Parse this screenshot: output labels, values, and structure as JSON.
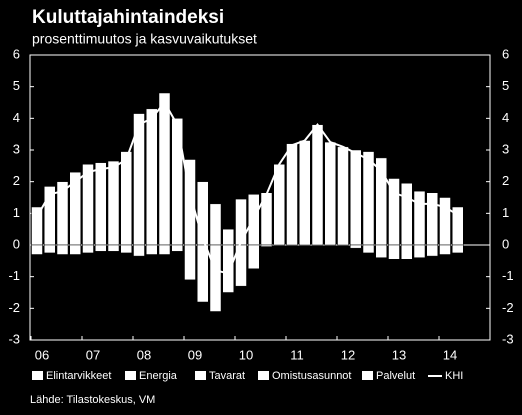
{
  "title": "Kuluttajahintaindeksi",
  "subtitle": "prosenttimuutos ja kasvuvaikutukset",
  "source": "Lähde: Tilastokeskus, VM",
  "chart_data": {
    "type": "bar",
    "categories": [
      "06",
      null,
      null,
      null,
      "07",
      null,
      null,
      null,
      "08",
      null,
      null,
      null,
      "09",
      null,
      null,
      null,
      "10",
      null,
      null,
      null,
      "11",
      null,
      null,
      null,
      "12",
      null,
      null,
      null,
      "13",
      null,
      null,
      null,
      "14",
      null
    ],
    "stacked_bars": {
      "color": "#ffffff",
      "upper": [
        1.2,
        1.85,
        2.0,
        2.3,
        2.55,
        2.6,
        2.65,
        2.95,
        4.15,
        4.3,
        4.8,
        4.0,
        2.7,
        2.0,
        1.3,
        0.5,
        1.45,
        1.6,
        1.65,
        2.55,
        3.2,
        3.3,
        3.8,
        3.25,
        3.1,
        3.0,
        2.95,
        2.75,
        2.1,
        1.95,
        1.7,
        1.65,
        1.5,
        1.2
      ],
      "lower": [
        -0.3,
        -0.25,
        -0.3,
        -0.3,
        -0.25,
        -0.2,
        -0.2,
        -0.25,
        -0.35,
        -0.3,
        -0.3,
        -0.2,
        -1.1,
        -1.8,
        -2.1,
        -1.5,
        -1.3,
        -0.75,
        -0.05,
        0,
        0,
        0,
        0,
        0,
        0,
        -0.1,
        -0.25,
        -0.4,
        -0.45,
        -0.45,
        -0.4,
        -0.35,
        -0.3,
        -0.25
      ]
    },
    "legend": [
      "Elintarvikkeet",
      "Energia",
      "Tavarat",
      "Omistusasunnot",
      "Palvelut"
    ],
    "line": {
      "name": "KHI",
      "color": "#ffffff",
      "values": [
        0.9,
        1.6,
        1.7,
        2.0,
        2.3,
        2.4,
        2.45,
        2.7,
        3.8,
        4.0,
        4.5,
        3.8,
        1.6,
        0.2,
        -0.8,
        -0.9,
        0.1,
        0.85,
        1.6,
        2.55,
        3.15,
        3.3,
        3.8,
        3.25,
        3.1,
        2.9,
        2.7,
        2.35,
        1.65,
        1.5,
        1.3,
        1.3,
        1.2,
        0.95
      ]
    },
    "ylim": [
      -3,
      6
    ],
    "yticks": [
      -3,
      -2,
      -1,
      0,
      1,
      2,
      3,
      4,
      5,
      6
    ],
    "grid": false
  }
}
